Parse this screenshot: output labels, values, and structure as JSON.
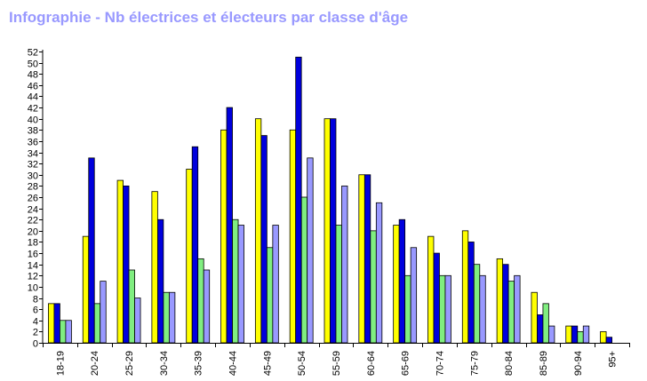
{
  "title": "Infographie - Nb électrices et électeurs par classe d'âge",
  "chart_data": {
    "type": "bar",
    "title": "Infographie - Nb électrices et électeurs par classe d'âge",
    "categories": [
      "18-19",
      "20-24",
      "25-29",
      "30-34",
      "35-39",
      "40-44",
      "45-49",
      "50-54",
      "55-59",
      "60-64",
      "65-69",
      "70-74",
      "75-79",
      "80-84",
      "85-89",
      "90-94",
      "95+"
    ],
    "series": [
      {
        "color": "#ffff00",
        "values": [
          7,
          19,
          29,
          27,
          31,
          38,
          40,
          38,
          40,
          30,
          21,
          19,
          20,
          15,
          9,
          3,
          2
        ]
      },
      {
        "color": "#0000dd",
        "values": [
          7,
          33,
          28,
          22,
          35,
          42,
          37,
          51,
          40,
          30,
          22,
          16,
          18,
          14,
          5,
          3,
          1
        ]
      },
      {
        "color": "#80ee80",
        "values": [
          4,
          7,
          13,
          9,
          15,
          22,
          17,
          26,
          21,
          20,
          12,
          12,
          14,
          11,
          7,
          2,
          0
        ]
      },
      {
        "color": "#9999ff",
        "values": [
          4,
          11,
          8,
          9,
          13,
          21,
          21,
          33,
          28,
          25,
          17,
          12,
          12,
          12,
          3,
          3,
          0
        ]
      }
    ],
    "ylim": [
      0,
      52
    ],
    "yticks": [
      0,
      2,
      4,
      6,
      8,
      10,
      12,
      14,
      16,
      18,
      20,
      22,
      24,
      26,
      28,
      30,
      32,
      34,
      36,
      38,
      40,
      42,
      44,
      46,
      48,
      50,
      52
    ],
    "grid": false,
    "legend": "none"
  }
}
